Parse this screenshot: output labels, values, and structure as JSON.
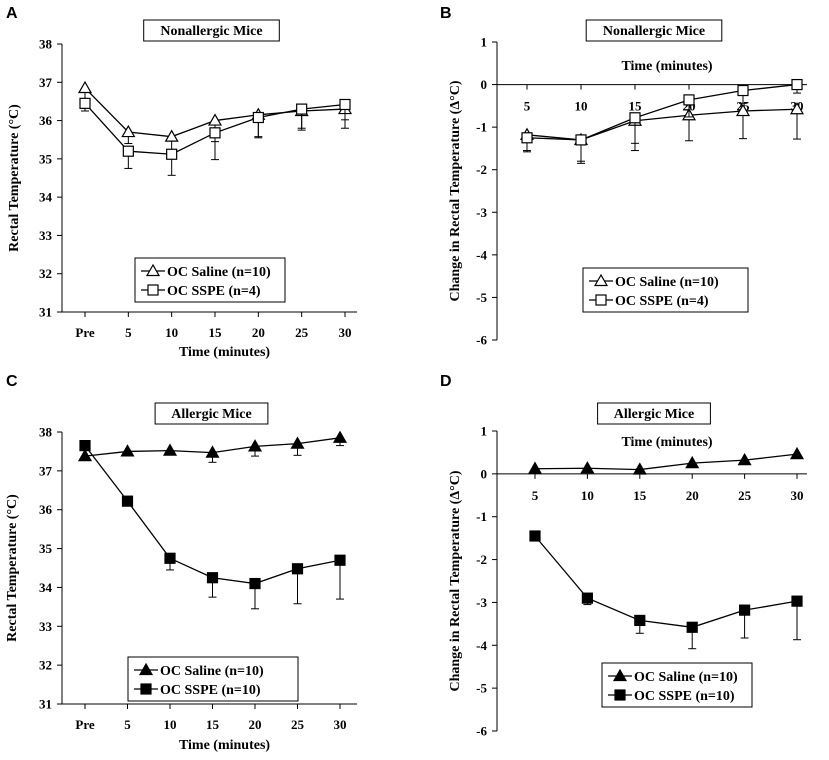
{
  "figure": {
    "panels": [
      "A",
      "B",
      "C",
      "D"
    ]
  },
  "chart_data": [
    {
      "panel": "A",
      "type": "line",
      "title": "Nonallergic Mice",
      "xlabel": "Time (minutes)",
      "ylabel": "Rectal Temperature (°C)",
      "categories": [
        "Pre",
        "5",
        "10",
        "15",
        "20",
        "25",
        "30"
      ],
      "ylim": [
        31,
        38
      ],
      "yticks": [
        31,
        32,
        33,
        34,
        35,
        36,
        37,
        38
      ],
      "legend_position": "bottom-center",
      "series": [
        {
          "name": "OC Saline (n=10)",
          "marker": "triangle-open",
          "values": [
            36.85,
            35.7,
            35.58,
            36.0,
            36.15,
            36.25,
            36.3
          ],
          "errors_up": [
            0,
            0,
            0,
            0,
            0,
            0,
            0
          ],
          "errors_down": [
            0.3,
            0.3,
            0.35,
            0.55,
            0.6,
            0.45,
            0.5
          ]
        },
        {
          "name": "OC SSPE (n=4)",
          "marker": "square-open",
          "values": [
            36.45,
            35.2,
            35.12,
            35.68,
            36.08,
            36.3,
            36.42
          ],
          "errors_up": [
            0,
            0,
            0,
            0,
            0,
            0,
            0
          ],
          "errors_down": [
            0.2,
            0.45,
            0.55,
            0.7,
            0.5,
            0.55,
            0.4
          ]
        }
      ]
    },
    {
      "panel": "B",
      "type": "line",
      "title": "Nonallergic Mice",
      "xlabel": "Time (minutes)",
      "ylabel": "Change in Rectal Temperature (Δ°C)",
      "categories": [
        "5",
        "10",
        "15",
        "20",
        "25",
        "30"
      ],
      "ylim": [
        -6,
        1
      ],
      "yticks": [
        -6,
        -5,
        -4,
        -3,
        -2,
        -1,
        0,
        1
      ],
      "legend_position": "bottom-center",
      "series": [
        {
          "name": "OC Saline (n=10)",
          "marker": "triangle-open",
          "values": [
            -1.18,
            -1.3,
            -0.85,
            -0.72,
            -0.62,
            -0.58
          ],
          "errors_up": [
            0,
            0,
            0,
            0,
            0,
            0
          ],
          "errors_down": [
            0.4,
            0.55,
            0.7,
            0.6,
            0.65,
            0.7
          ]
        },
        {
          "name": "OC SSPE (n=4)",
          "marker": "square-open",
          "values": [
            -1.25,
            -1.3,
            -0.78,
            -0.36,
            -0.14,
            0.0
          ],
          "errors_up": [
            0,
            0,
            0,
            0,
            0,
            0
          ],
          "errors_down": [
            0.3,
            0.5,
            0.6,
            0.4,
            0.3,
            0.2
          ]
        }
      ]
    },
    {
      "panel": "C",
      "type": "line",
      "title": "Allergic Mice",
      "xlabel": "Time (minutes)",
      "ylabel": "Rectal Temperature (°C)",
      "categories": [
        "Pre",
        "5",
        "10",
        "15",
        "20",
        "25",
        "30"
      ],
      "ylim": [
        31,
        38
      ],
      "yticks": [
        31,
        32,
        33,
        34,
        35,
        36,
        37,
        38
      ],
      "legend_position": "bottom-center",
      "series": [
        {
          "name": "OC Saline (n=10)",
          "marker": "triangle-filled",
          "values": [
            37.38,
            37.5,
            37.52,
            37.47,
            37.63,
            37.7,
            37.85
          ],
          "errors_up": [
            0,
            0,
            0,
            0,
            0,
            0,
            0
          ],
          "errors_down": [
            0,
            0,
            0.1,
            0.25,
            0.25,
            0.3,
            0.2
          ]
        },
        {
          "name": "OC SSPE (n=10)",
          "marker": "square-filled",
          "values": [
            37.65,
            36.22,
            34.75,
            34.25,
            34.1,
            34.48,
            34.7
          ],
          "errors_up": [
            0,
            0,
            0,
            0,
            0,
            0,
            0
          ],
          "errors_down": [
            0,
            0.1,
            0.3,
            0.5,
            0.65,
            0.9,
            1.0
          ]
        }
      ]
    },
    {
      "panel": "D",
      "type": "line",
      "title": "Allergic Mice",
      "xlabel": "Time (minutes)",
      "ylabel": "Change in Rectal Temperature (Δ°C)",
      "categories": [
        "5",
        "10",
        "15",
        "20",
        "25",
        "30"
      ],
      "ylim": [
        -6,
        1
      ],
      "yticks": [
        -6,
        -5,
        -4,
        -3,
        -2,
        -1,
        0,
        1
      ],
      "legend_position": "bottom-center",
      "series": [
        {
          "name": "OC Saline (n=10)",
          "marker": "triangle-filled",
          "values": [
            0.12,
            0.13,
            0.1,
            0.25,
            0.32,
            0.46
          ],
          "errors_up": [
            0,
            0,
            0,
            0,
            0,
            0
          ],
          "errors_down": [
            0,
            0,
            0,
            0,
            0,
            0
          ]
        },
        {
          "name": "OC SSPE (n=10)",
          "marker": "square-filled",
          "values": [
            -1.45,
            -2.9,
            -3.42,
            -3.58,
            -3.18,
            -2.97
          ],
          "errors_up": [
            0,
            0,
            0,
            0,
            0,
            0
          ],
          "errors_down": [
            0,
            0.15,
            0.3,
            0.5,
            0.65,
            0.9
          ]
        }
      ]
    }
  ]
}
